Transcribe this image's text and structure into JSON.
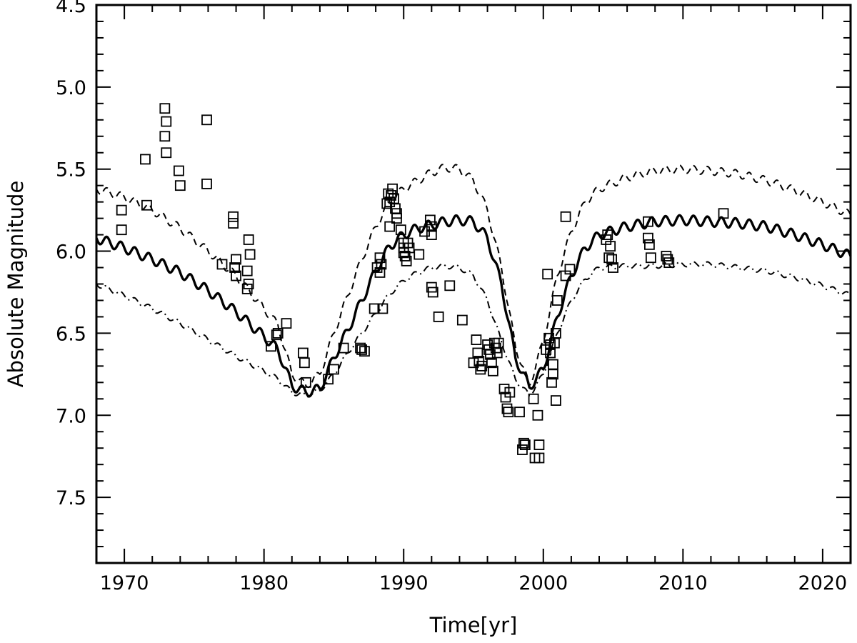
{
  "chart_data": {
    "type": "scatter",
    "title": "",
    "xlabel": "Time[yr]",
    "ylabel": "Absolute Magnitude",
    "xlim": [
      1968,
      2022
    ],
    "ylim": [
      4.5,
      7.9
    ],
    "y_inverted": true,
    "grid": false,
    "x_ticks": [
      1970,
      1980,
      1990,
      2000,
      2010,
      2020
    ],
    "x_minor_step": 2,
    "y_ticks": [
      "4.5",
      "5.0",
      "5.5",
      "6.0",
      "6.5",
      "7.0",
      "7.5"
    ],
    "y_minor_step": 0.1,
    "series": [
      {
        "style": "solid",
        "wiggle": 0.03,
        "points": [
          [
            1968,
            5.92
          ],
          [
            1970,
            5.98
          ],
          [
            1972,
            6.05
          ],
          [
            1974,
            6.13
          ],
          [
            1976,
            6.24
          ],
          [
            1978,
            6.37
          ],
          [
            1980,
            6.52
          ],
          [
            1981,
            6.6
          ],
          [
            1982,
            6.82
          ],
          [
            1983,
            6.86
          ],
          [
            1984,
            6.84
          ],
          [
            1985,
            6.65
          ],
          [
            1986,
            6.48
          ],
          [
            1987,
            6.3
          ],
          [
            1988,
            6.12
          ],
          [
            1989,
            5.97
          ],
          [
            1990,
            5.9
          ],
          [
            1991,
            5.86
          ],
          [
            1992,
            5.84
          ],
          [
            1993,
            5.82
          ],
          [
            1994,
            5.81
          ],
          [
            1995,
            5.82
          ],
          [
            1996,
            5.92
          ],
          [
            1997,
            6.2
          ],
          [
            1998,
            6.65
          ],
          [
            1999,
            6.83
          ],
          [
            2000,
            6.72
          ],
          [
            2001,
            6.4
          ],
          [
            2002,
            6.15
          ],
          [
            2003,
            5.98
          ],
          [
            2004,
            5.9
          ],
          [
            2006,
            5.85
          ],
          [
            2008,
            5.82
          ],
          [
            2010,
            5.81
          ],
          [
            2012,
            5.82
          ],
          [
            2014,
            5.83
          ],
          [
            2016,
            5.85
          ],
          [
            2018,
            5.9
          ],
          [
            2020,
            5.96
          ],
          [
            2022,
            6.03
          ]
        ]
      },
      {
        "style": "dashed",
        "wiggle": 0.025,
        "points": [
          [
            1968,
            5.62
          ],
          [
            1970,
            5.67
          ],
          [
            1972,
            5.75
          ],
          [
            1974,
            5.86
          ],
          [
            1976,
            6.0
          ],
          [
            1978,
            6.15
          ],
          [
            1980,
            6.35
          ],
          [
            1981,
            6.45
          ],
          [
            1982,
            6.75
          ],
          [
            1983,
            6.82
          ],
          [
            1984,
            6.75
          ],
          [
            1985,
            6.5
          ],
          [
            1986,
            6.27
          ],
          [
            1987,
            6.05
          ],
          [
            1988,
            5.85
          ],
          [
            1989,
            5.7
          ],
          [
            1990,
            5.62
          ],
          [
            1991,
            5.57
          ],
          [
            1992,
            5.52
          ],
          [
            1993,
            5.49
          ],
          [
            1994,
            5.5
          ],
          [
            1995,
            5.57
          ],
          [
            1996,
            5.75
          ],
          [
            1997,
            6.1
          ],
          [
            1998,
            6.58
          ],
          [
            1999,
            6.82
          ],
          [
            2000,
            6.55
          ],
          [
            2001,
            6.15
          ],
          [
            2002,
            5.88
          ],
          [
            2003,
            5.7
          ],
          [
            2004,
            5.62
          ],
          [
            2006,
            5.55
          ],
          [
            2008,
            5.51
          ],
          [
            2010,
            5.5
          ],
          [
            2012,
            5.51
          ],
          [
            2014,
            5.53
          ],
          [
            2016,
            5.57
          ],
          [
            2018,
            5.63
          ],
          [
            2020,
            5.7
          ],
          [
            2022,
            5.78
          ]
        ]
      },
      {
        "style": "dashdot",
        "wiggle": 0.015,
        "points": [
          [
            1968,
            6.2
          ],
          [
            1970,
            6.27
          ],
          [
            1972,
            6.35
          ],
          [
            1974,
            6.44
          ],
          [
            1976,
            6.54
          ],
          [
            1978,
            6.64
          ],
          [
            1980,
            6.73
          ],
          [
            1981,
            6.78
          ],
          [
            1982,
            6.86
          ],
          [
            1983,
            6.88
          ],
          [
            1984,
            6.85
          ],
          [
            1985,
            6.75
          ],
          [
            1986,
            6.62
          ],
          [
            1987,
            6.5
          ],
          [
            1988,
            6.38
          ],
          [
            1989,
            6.26
          ],
          [
            1990,
            6.18
          ],
          [
            1991,
            6.13
          ],
          [
            1992,
            6.1
          ],
          [
            1993,
            6.09
          ],
          [
            1994,
            6.1
          ],
          [
            1995,
            6.15
          ],
          [
            1996,
            6.3
          ],
          [
            1997,
            6.55
          ],
          [
            1998,
            6.78
          ],
          [
            1999,
            6.88
          ],
          [
            2000,
            6.75
          ],
          [
            2001,
            6.5
          ],
          [
            2002,
            6.3
          ],
          [
            2003,
            6.17
          ],
          [
            2004,
            6.1
          ],
          [
            2006,
            6.09
          ],
          [
            2008,
            6.09
          ],
          [
            2010,
            6.08
          ],
          [
            2012,
            6.08
          ],
          [
            2014,
            6.1
          ],
          [
            2016,
            6.12
          ],
          [
            2018,
            6.16
          ],
          [
            2020,
            6.21
          ],
          [
            2022,
            6.27
          ]
        ]
      },
      {
        "style": "markers",
        "marker": "square",
        "points": [
          [
            1969.8,
            5.75
          ],
          [
            1969.8,
            5.87
          ],
          [
            1971.5,
            5.44
          ],
          [
            1971.6,
            5.72
          ],
          [
            1972.9,
            5.13
          ],
          [
            1973.0,
            5.21
          ],
          [
            1972.9,
            5.3
          ],
          [
            1973.0,
            5.4
          ],
          [
            1973.9,
            5.51
          ],
          [
            1974.0,
            5.6
          ],
          [
            1975.9,
            5.2
          ],
          [
            1975.9,
            5.59
          ],
          [
            1977.0,
            6.08
          ],
          [
            1977.8,
            5.79
          ],
          [
            1977.8,
            5.83
          ],
          [
            1978.0,
            6.05
          ],
          [
            1977.9,
            6.1
          ],
          [
            1978.0,
            6.15
          ],
          [
            1978.9,
            5.93
          ],
          [
            1979.0,
            6.02
          ],
          [
            1978.8,
            6.12
          ],
          [
            1978.9,
            6.2
          ],
          [
            1978.8,
            6.23
          ],
          [
            1980.5,
            6.58
          ],
          [
            1980.9,
            6.51
          ],
          [
            1981.0,
            6.5
          ],
          [
            1981.6,
            6.44
          ],
          [
            1982.8,
            6.62
          ],
          [
            1982.9,
            6.68
          ],
          [
            1983.0,
            6.8
          ],
          [
            1984.6,
            6.78
          ],
          [
            1985.0,
            6.72
          ],
          [
            1985.7,
            6.59
          ],
          [
            1986.9,
            6.59
          ],
          [
            1987.0,
            6.6
          ],
          [
            1987.2,
            6.61
          ],
          [
            1987.9,
            6.35
          ],
          [
            1988.1,
            6.1
          ],
          [
            1988.3,
            6.04
          ],
          [
            1988.4,
            6.08
          ],
          [
            1988.3,
            6.13
          ],
          [
            1988.5,
            6.35
          ],
          [
            1988.8,
            5.71
          ],
          [
            1988.9,
            5.65
          ],
          [
            1989.0,
            5.7
          ],
          [
            1989.1,
            5.66
          ],
          [
            1989.2,
            5.62
          ],
          [
            1989.0,
            5.85
          ],
          [
            1989.3,
            5.68
          ],
          [
            1989.4,
            5.74
          ],
          [
            1989.5,
            5.77
          ],
          [
            1989.5,
            5.8
          ],
          [
            1989.8,
            5.87
          ],
          [
            1990.0,
            5.95
          ],
          [
            1990.0,
            5.98
          ],
          [
            1990.0,
            6.01
          ],
          [
            1990.1,
            6.03
          ],
          [
            1990.2,
            6.06
          ],
          [
            1990.3,
            5.95
          ],
          [
            1990.4,
            5.98
          ],
          [
            1991.1,
            6.02
          ],
          [
            1991.5,
            5.88
          ],
          [
            1991.9,
            5.81
          ],
          [
            1992.0,
            5.85
          ],
          [
            1992.0,
            5.9
          ],
          [
            1992.0,
            6.22
          ],
          [
            1992.1,
            6.25
          ],
          [
            1992.5,
            6.4
          ],
          [
            1993.3,
            6.21
          ],
          [
            1994.2,
            6.42
          ],
          [
            1995.0,
            6.68
          ],
          [
            1995.2,
            6.54
          ],
          [
            1995.3,
            6.62
          ],
          [
            1995.4,
            6.67
          ],
          [
            1995.5,
            6.72
          ],
          [
            1995.6,
            6.7
          ],
          [
            1996.0,
            6.57
          ],
          [
            1996.1,
            6.6
          ],
          [
            1996.2,
            6.63
          ],
          [
            1996.3,
            6.68
          ],
          [
            1996.4,
            6.73
          ],
          [
            1996.5,
            6.56
          ],
          [
            1996.6,
            6.59
          ],
          [
            1996.7,
            6.62
          ],
          [
            1996.8,
            6.56
          ],
          [
            1997.2,
            6.84
          ],
          [
            1997.3,
            6.89
          ],
          [
            1997.4,
            6.96
          ],
          [
            1997.5,
            6.98
          ],
          [
            1997.6,
            6.86
          ],
          [
            1998.3,
            6.98
          ],
          [
            1998.5,
            7.21
          ],
          [
            1998.6,
            7.17
          ],
          [
            1998.7,
            7.18
          ],
          [
            1999.3,
            6.9
          ],
          [
            1999.4,
            7.26
          ],
          [
            1999.6,
            7.0
          ],
          [
            1999.7,
            7.18
          ],
          [
            1999.7,
            7.26
          ],
          [
            2000.2,
            6.6
          ],
          [
            2000.3,
            6.14
          ],
          [
            2000.4,
            6.53
          ],
          [
            2000.5,
            6.57
          ],
          [
            2000.5,
            6.62
          ],
          [
            2000.6,
            6.8
          ],
          [
            2000.7,
            6.75
          ],
          [
            2000.7,
            6.69
          ],
          [
            2000.8,
            6.56
          ],
          [
            2000.9,
            6.91
          ],
          [
            2000.9,
            6.5
          ],
          [
            2001.0,
            6.3
          ],
          [
            2001.6,
            5.79
          ],
          [
            2001.6,
            6.15
          ],
          [
            2001.9,
            6.11
          ],
          [
            2004.5,
            5.93
          ],
          [
            2004.6,
            5.9
          ],
          [
            2004.7,
            6.04
          ],
          [
            2004.8,
            5.97
          ],
          [
            2004.9,
            6.05
          ],
          [
            2005.0,
            6.1
          ],
          [
            2007.5,
            5.82
          ],
          [
            2007.5,
            5.92
          ],
          [
            2007.6,
            5.96
          ],
          [
            2007.7,
            6.04
          ],
          [
            2008.8,
            6.03
          ],
          [
            2008.9,
            6.05
          ],
          [
            2009.0,
            6.07
          ],
          [
            2012.9,
            5.77
          ]
        ]
      }
    ]
  }
}
